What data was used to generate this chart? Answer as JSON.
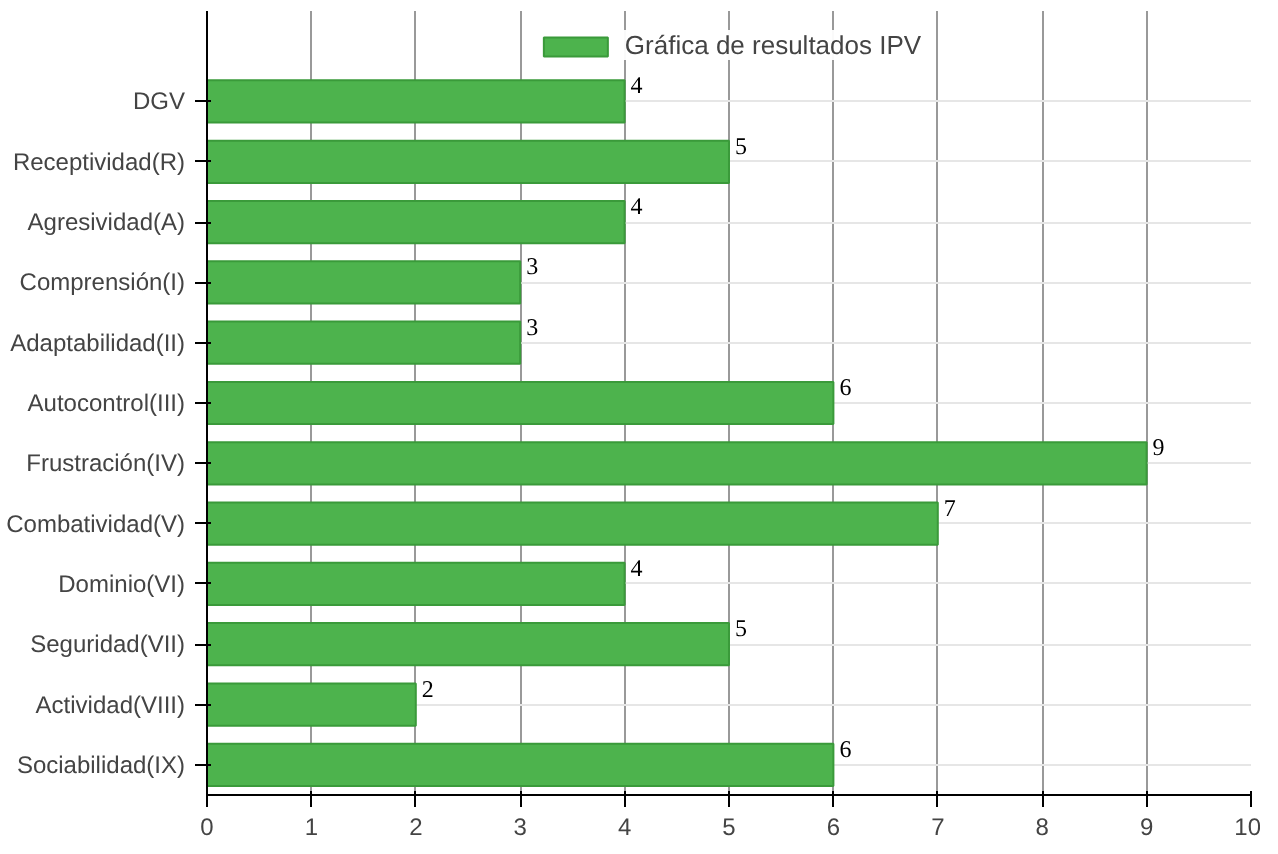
{
  "chart_data": {
    "type": "bar",
    "orientation": "horizontal",
    "categories": [
      "DGV",
      "Receptividad(R)",
      "Agresividad(A)",
      "Comprensión(I)",
      "Adaptabilidad(II)",
      "Autocontrol(III)",
      "Frustración(IV)",
      "Combatividad(V)",
      "Dominio(VI)",
      "Seguridad(VII)",
      "Actividad(VIII)",
      "Sociabilidad(IX)"
    ],
    "series": [
      {
        "name": "Gráfica de resultados IPV",
        "color": "#4db34d",
        "values": [
          4,
          5,
          4,
          3,
          3,
          6,
          9,
          7,
          4,
          5,
          2,
          6
        ]
      }
    ],
    "xlim": [
      0,
      10
    ],
    "xticks": [
      0,
      1,
      2,
      3,
      4,
      5,
      6,
      7,
      8,
      9,
      10
    ],
    "grid": true,
    "legend": "top",
    "data_labels": true
  }
}
